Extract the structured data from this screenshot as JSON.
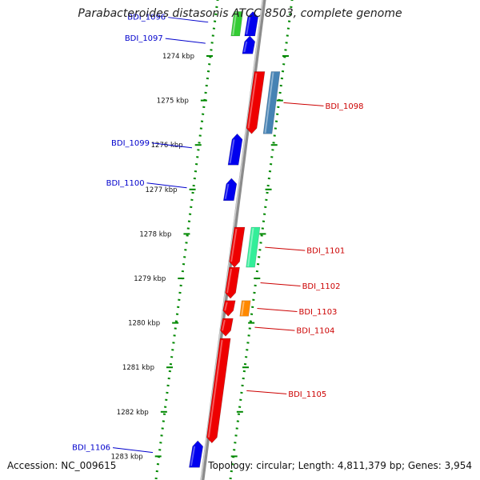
{
  "title": "Parabacteroides distasonis ATCC 8503, complete genome",
  "footer": {
    "accession_label": "Accession:",
    "accession": "NC_009615",
    "topology_label": "Topology:",
    "topology": "circular",
    "length_label": "Length:",
    "length": "4,811,379 bp",
    "genes_label": "Genes:",
    "genes": "3,954"
  },
  "colors": {
    "forward_strand": "#0000ee",
    "reverse_strand": "#ee0000",
    "backbone": "#8c8c8c",
    "ticks": "#008800",
    "forward_label": "#0000cc",
    "reverse_label": "#cc0000",
    "cog_green": "#33cc33",
    "cog_blue": "#4682b4",
    "cog_teal": "#33ee99",
    "cog_orange": "#ff8800"
  },
  "ruler": {
    "unit": "kbp",
    "ticks": [
      {
        "value": 1274,
        "label": "1274 kbp"
      },
      {
        "value": 1275,
        "label": "1275 kbp"
      },
      {
        "value": 1276,
        "label": "1276 kbp"
      },
      {
        "value": 1277,
        "label": "1277 kbp"
      },
      {
        "value": 1278,
        "label": "1278 kbp"
      },
      {
        "value": 1279,
        "label": "1279 kbp"
      },
      {
        "value": 1280,
        "label": "1280 kbp"
      },
      {
        "value": 1281,
        "label": "1281 kbp"
      },
      {
        "value": 1282,
        "label": "1282 kbp"
      },
      {
        "value": 1283,
        "label": "1283 kbp"
      }
    ]
  },
  "genes": [
    {
      "name": "BDI_1096",
      "strand": "forward",
      "start": 1273.0,
      "end": 1273.55,
      "cog": "cog_green"
    },
    {
      "name": "BDI_1097",
      "strand": "forward",
      "start": 1273.55,
      "end": 1273.95,
      "cog": null
    },
    {
      "name": "BDI_1098",
      "strand": "reverse",
      "start": 1274.35,
      "end": 1275.75,
      "cog": "cog_blue"
    },
    {
      "name": "BDI_1099",
      "strand": "forward",
      "start": 1275.75,
      "end": 1276.45,
      "cog": null
    },
    {
      "name": "BDI_1100",
      "strand": "forward",
      "start": 1276.75,
      "end": 1277.25,
      "cog": null
    },
    {
      "name": "BDI_1101",
      "strand": "reverse",
      "start": 1277.85,
      "end": 1278.75,
      "cog": "cog_teal"
    },
    {
      "name": "BDI_1102",
      "strand": "reverse",
      "start": 1278.75,
      "end": 1279.45,
      "cog": null
    },
    {
      "name": "BDI_1103",
      "strand": "reverse",
      "start": 1279.5,
      "end": 1279.85,
      "cog": "cog_orange"
    },
    {
      "name": "BDI_1104",
      "strand": "reverse",
      "start": 1279.9,
      "end": 1280.3,
      "cog": null
    },
    {
      "name": "BDI_1105",
      "strand": "reverse",
      "start": 1280.35,
      "end": 1282.7,
      "cog": null
    },
    {
      "name": "BDI_1106",
      "strand": "forward",
      "start": 1282.65,
      "end": 1283.25,
      "cog": null
    }
  ]
}
